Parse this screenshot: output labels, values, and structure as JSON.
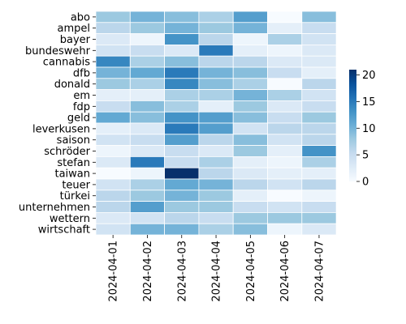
{
  "chart_data": {
    "type": "heatmap",
    "title": "",
    "xlabel": "",
    "ylabel": "",
    "x_categories": [
      "2024-04-01",
      "2024-04-02",
      "2024-04-03",
      "2024-04-04",
      "2024-04-05",
      "2024-04-06",
      "2024-04-07"
    ],
    "y_categories": [
      "abo",
      "ampel",
      "bayer",
      "bundeswehr",
      "cannabis",
      "dfb",
      "donald",
      "em",
      "fdp",
      "geld",
      "leverkusen",
      "saison",
      "schröder",
      "stefan",
      "taiwan",
      "teuer",
      "türkei",
      "unternehmen",
      "wettern",
      "wirtschaft"
    ],
    "values": [
      [
        8,
        10,
        9,
        7,
        12,
        0,
        9
      ],
      [
        6,
        8,
        10,
        8,
        10,
        2,
        5
      ],
      [
        3,
        1,
        13,
        6,
        1,
        7,
        4
      ],
      [
        4,
        5,
        3,
        15,
        2,
        1,
        3
      ],
      [
        14,
        7,
        9,
        6,
        6,
        3,
        3
      ],
      [
        10,
        11,
        15,
        10,
        9,
        5,
        2
      ],
      [
        8,
        7,
        14,
        9,
        7,
        0,
        6
      ],
      [
        2,
        2,
        7,
        7,
        10,
        7,
        4
      ],
      [
        5,
        9,
        7,
        2,
        8,
        3,
        5
      ],
      [
        11,
        9,
        13,
        12,
        9,
        5,
        8
      ],
      [
        2,
        3,
        15,
        12,
        4,
        6,
        6
      ],
      [
        4,
        5,
        12,
        6,
        9,
        4,
        6
      ],
      [
        1,
        3,
        5,
        3,
        8,
        2,
        13
      ],
      [
        3,
        15,
        5,
        7,
        2,
        1,
        7
      ],
      [
        0,
        1,
        21,
        6,
        3,
        2,
        2
      ],
      [
        4,
        7,
        11,
        10,
        6,
        4,
        6
      ],
      [
        6,
        8,
        10,
        8,
        2,
        0,
        1
      ],
      [
        6,
        12,
        8,
        8,
        5,
        4,
        5
      ],
      [
        3,
        4,
        6,
        5,
        8,
        8,
        8
      ],
      [
        4,
        10,
        10,
        7,
        9,
        1,
        3
      ]
    ],
    "colormap": "Blues",
    "vmin": 0,
    "vmax": 21,
    "colorbar_ticks": [
      0,
      5,
      10,
      15,
      20
    ]
  }
}
